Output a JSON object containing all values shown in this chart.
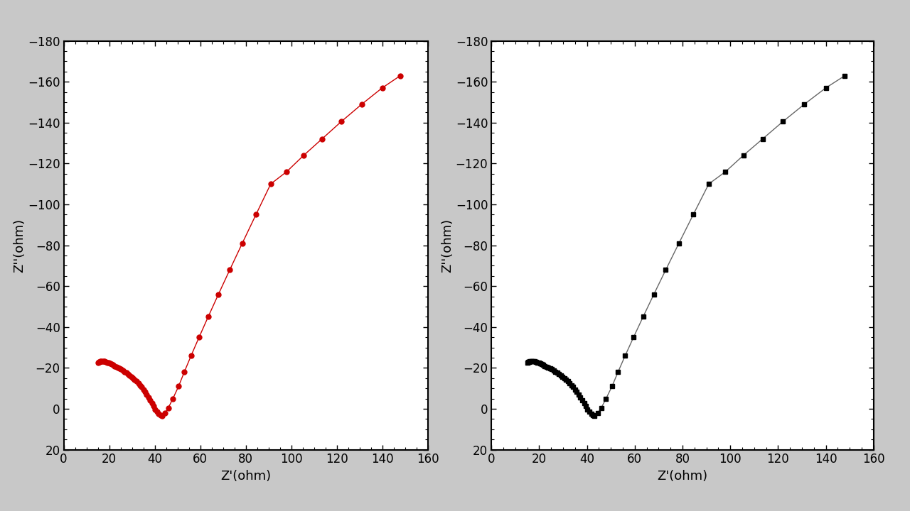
{
  "xlabel": "Z'(ohm)",
  "ylabel": "Z''(ohm)",
  "xlim": [
    0,
    160
  ],
  "ylim": [
    20,
    -180
  ],
  "xticks": [
    0,
    20,
    40,
    60,
    80,
    100,
    120,
    140,
    160
  ],
  "yticks": [
    20,
    0,
    -20,
    -40,
    -60,
    -80,
    -100,
    -120,
    -140,
    -160,
    -180
  ],
  "plot1_color": "#cc0000",
  "plot2_color": "#000000",
  "line_color_1": "#cc0000",
  "line_color_2": "#666666",
  "marker1": "o",
  "marker2": "s",
  "markersize1": 5,
  "markersize2": 4,
  "linewidth": 1.0,
  "background": "#ffffff",
  "fig_bg": "#c8c8c8",
  "figsize": [
    12.8,
    7.2
  ],
  "dpi": 100,
  "x_data": [
    15.2,
    15.5,
    15.8,
    16.1,
    16.5,
    17.0,
    17.5,
    18.0,
    18.6,
    19.2,
    19.8,
    20.4,
    21.0,
    21.7,
    22.4,
    23.1,
    23.8,
    24.5,
    25.2,
    26.0,
    26.8,
    27.5,
    28.2,
    29.0,
    29.8,
    30.5,
    31.2,
    32.0,
    32.8,
    33.5,
    34.2,
    35.0,
    35.8,
    36.5,
    37.2,
    38.0,
    38.8,
    39.5,
    40.2,
    41.0,
    41.8,
    42.5,
    43.2,
    44.5,
    46.0,
    48.0,
    50.5,
    53.0,
    56.0,
    59.5,
    63.5,
    68.0,
    73.0,
    78.5,
    84.5,
    91.0,
    98.0,
    105.5,
    113.5,
    122.0,
    131.0,
    140.0,
    148.0
  ],
  "y_data": [
    -22.5,
    -22.8,
    -23.0,
    -23.1,
    -23.2,
    -23.3,
    -23.2,
    -23.1,
    -22.9,
    -22.7,
    -22.4,
    -22.1,
    -21.8,
    -21.4,
    -21.0,
    -20.6,
    -20.2,
    -19.8,
    -19.3,
    -18.8,
    -18.2,
    -17.6,
    -17.0,
    -16.4,
    -15.7,
    -15.0,
    -14.2,
    -13.4,
    -12.5,
    -11.6,
    -10.6,
    -9.5,
    -8.3,
    -7.0,
    -5.7,
    -4.3,
    -2.8,
    -1.3,
    0.2,
    1.5,
    2.5,
    3.2,
    3.5,
    2.0,
    -0.5,
    -5.0,
    -11.0,
    -18.0,
    -26.0,
    -35.0,
    -45.0,
    -56.0,
    -68.0,
    -81.0,
    -95.0,
    -110.0,
    -116.0,
    -124.0,
    -132.0,
    -140.5,
    -149.0,
    -157.0,
    -163.0
  ]
}
